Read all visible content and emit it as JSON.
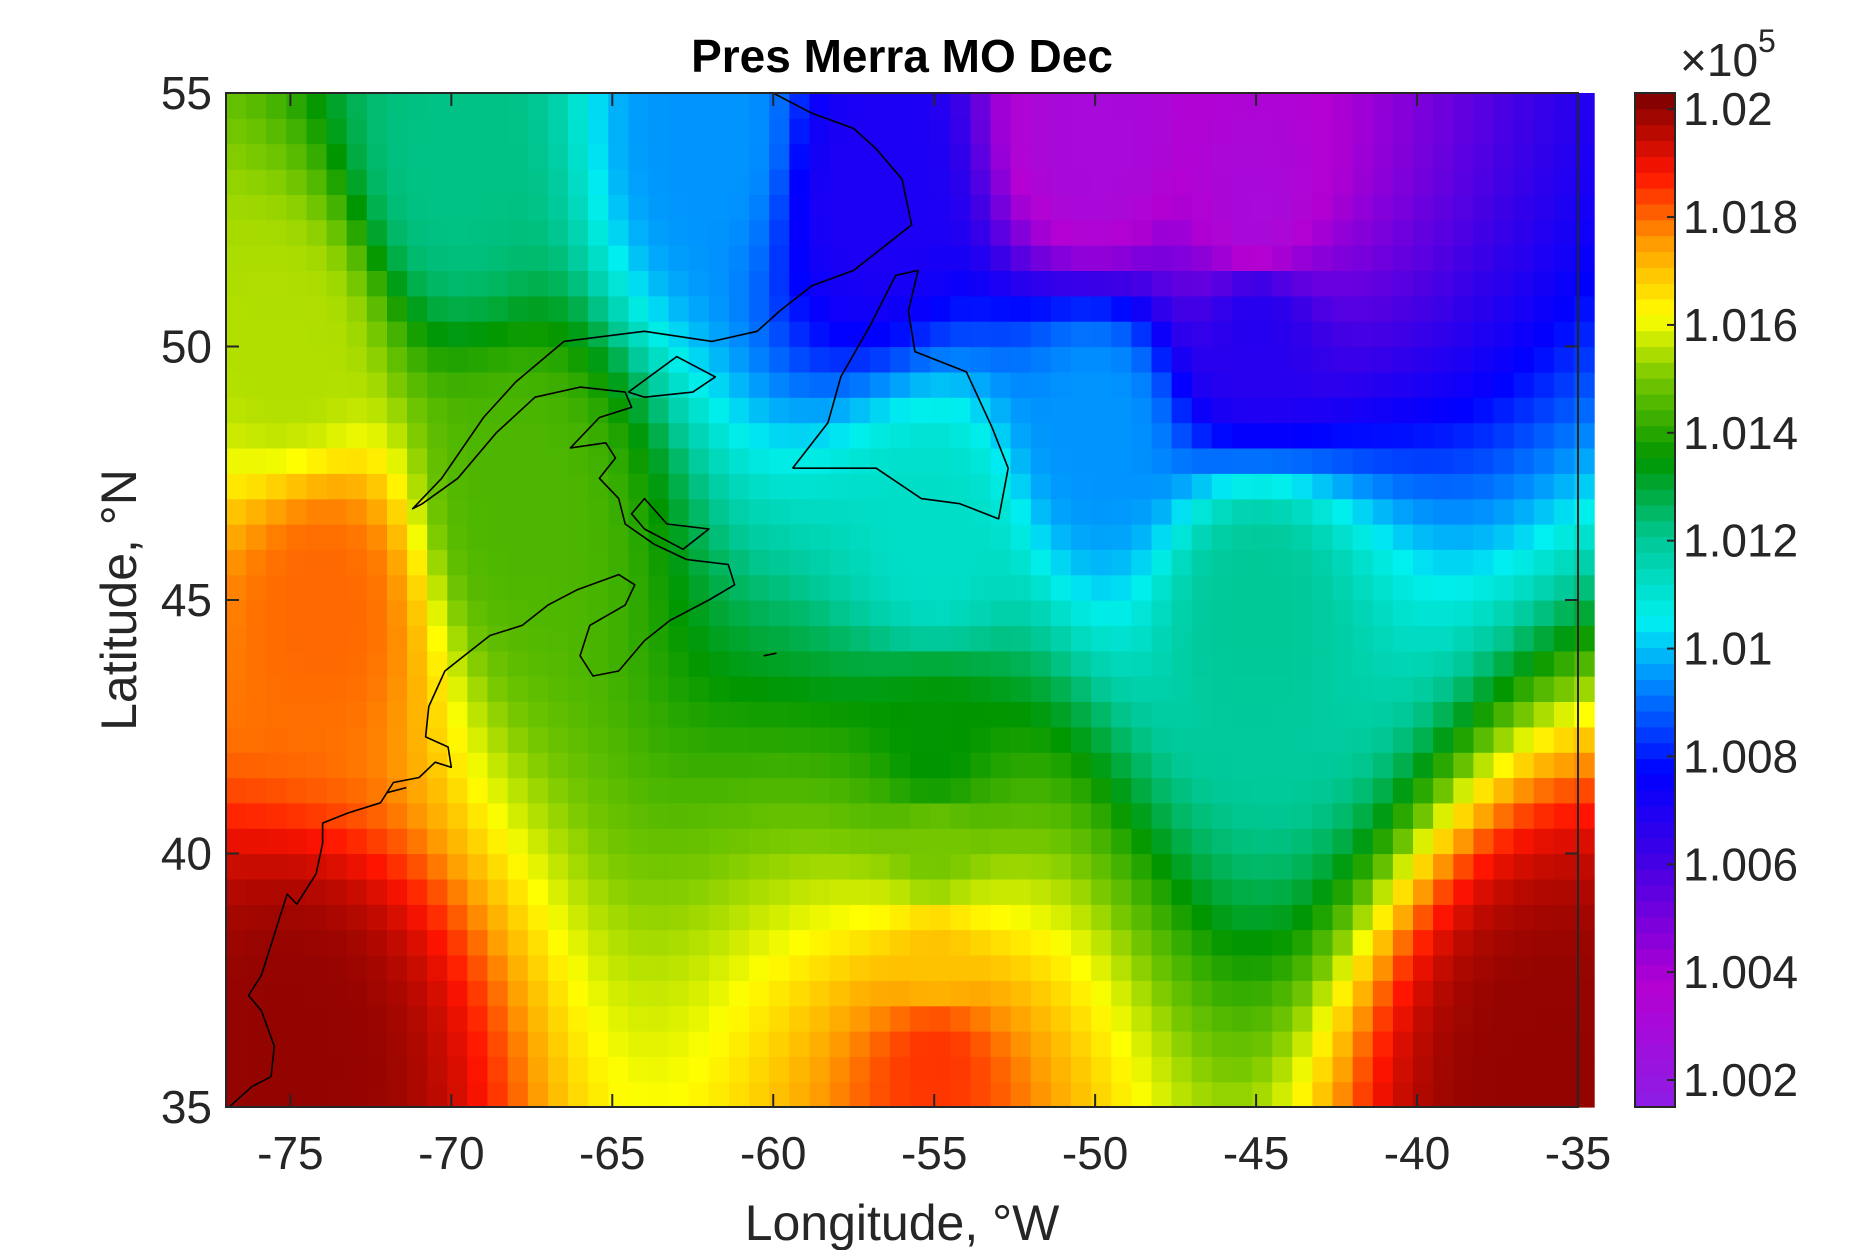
{
  "chart_data": {
    "type": "heatmap",
    "title": "Pres Merra MO Dec",
    "xlabel": "Longitude, °W",
    "ylabel": "Latitude, °N",
    "xlim": [
      -77,
      -35
    ],
    "ylim": [
      35,
      55
    ],
    "x_ticks": [
      "-75",
      "-70",
      "-65",
      "-60",
      "-55",
      "-50",
      "-45",
      "-40",
      "-35"
    ],
    "y_ticks": [
      "55",
      "50",
      "45",
      "40",
      "35"
    ],
    "colorbar": {
      "multiplier_base": "×10",
      "multiplier_exp": "5",
      "range": [
        1.0015,
        1.0203
      ],
      "ticks": [
        "1.02",
        "1.018",
        "1.016",
        "1.014",
        "1.012",
        "1.01",
        "1.008",
        "1.006",
        "1.004",
        "1.002"
      ],
      "colormap": "jet-like: violet-blue-cyan-green-yellow-orange-red-darkred"
    },
    "field_description_points": [
      {
        "lon": -70,
        "lat": 53.5,
        "value": 1.0122
      },
      {
        "lon": -62,
        "lat": 54,
        "value": 1.0095
      },
      {
        "lon": -57,
        "lat": 53,
        "value": 1.007
      },
      {
        "lon": -50,
        "lat": 54,
        "value": 1.003
      },
      {
        "lon": -45,
        "lat": 52.5,
        "value": 1.003
      },
      {
        "lon": -45,
        "lat": 50.5,
        "value": 1.0068
      },
      {
        "lon": -50,
        "lat": 48.5,
        "value": 1.0095
      },
      {
        "lon": -55,
        "lat": 46,
        "value": 1.0112
      },
      {
        "lon": -45,
        "lat": 45,
        "value": 1.012
      },
      {
        "lon": -55,
        "lat": 42,
        "value": 1.0135
      },
      {
        "lon": -55,
        "lat": 40,
        "value": 1.015
      },
      {
        "lon": -55,
        "lat": 38,
        "value": 1.017
      },
      {
        "lon": -55,
        "lat": 36,
        "value": 1.0185
      },
      {
        "lon": -75,
        "lat": 36,
        "value": 1.02
      },
      {
        "lon": -36,
        "lat": 35.5,
        "value": 1.02
      },
      {
        "lon": -75,
        "lat": 50,
        "value": 1.0155
      },
      {
        "lon": -74,
        "lat": 45,
        "value": 1.018
      },
      {
        "lon": -68,
        "lat": 47,
        "value": 1.0145
      }
    ]
  }
}
